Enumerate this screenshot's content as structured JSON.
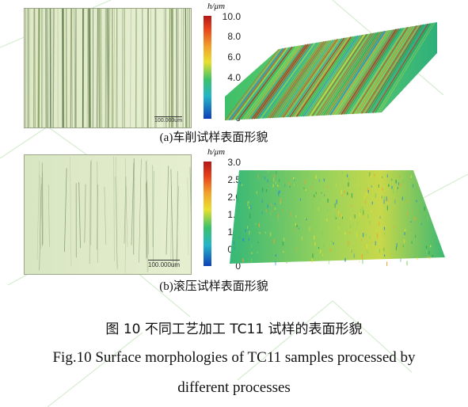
{
  "panel_a": {
    "scale_label": "100.000um",
    "colorbar_unit": "h/μm",
    "ticks": [
      "10.0",
      "8.0",
      "6.0",
      "4.0",
      "2.0",
      "0"
    ],
    "caption": "(a)车削试样表面形貌"
  },
  "panel_b": {
    "scale_label": "100.000um",
    "colorbar_unit": "h/μm",
    "ticks": [
      "3.0",
      "2.5",
      "2.0",
      "1.5",
      "1.0",
      "0.5",
      "0"
    ],
    "caption": "(b)滚压试样表面形貌"
  },
  "figure": {
    "caption_cn": "图 10  不同工艺加工 TC11 试样的表面形貌",
    "caption_en_line1": "Fig.10 Surface morphologies of TC11 samples processed by",
    "caption_en_line2": "different processes"
  }
}
